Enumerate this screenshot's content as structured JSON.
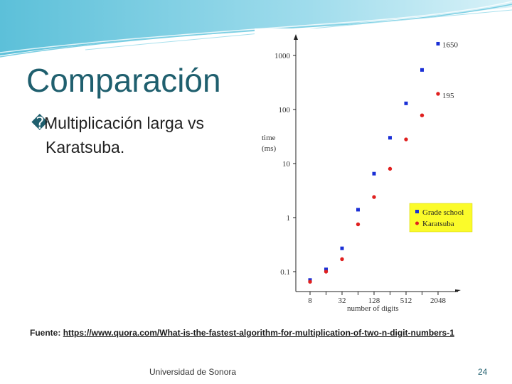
{
  "slide": {
    "title": "Comparación",
    "bullet_glyph": "�",
    "bullet_line1": "Multiplicación larga vs",
    "bullet_line2": "Karatsuba.",
    "source_label": "Fuente:",
    "source_link": "https://www.quora.com/What-is-the-fastest-algorithm-for-multiplication-of-two-n-digit-numbers-1",
    "footer": "Universidad de Sonora",
    "page_number": "24"
  },
  "chart_data": {
    "type": "scatter",
    "ylabel_line1": "time",
    "ylabel_line2": "(ms)",
    "xlabel": "number of digits",
    "y_scale": "log",
    "ylim": [
      0.05,
      2000
    ],
    "y_ticks": [
      {
        "value": 0.1,
        "label": "0.1"
      },
      {
        "value": 1,
        "label": "1"
      },
      {
        "value": 10,
        "label": "10"
      },
      {
        "value": 100,
        "label": "100"
      },
      {
        "value": 1000,
        "label": "1000"
      }
    ],
    "x_scale": "log2",
    "xlim": [
      8,
      2048
    ],
    "x_ticks": [
      {
        "value": 8,
        "label": "8"
      },
      {
        "value": 32,
        "label": "32"
      },
      {
        "value": 128,
        "label": "128"
      },
      {
        "value": 512,
        "label": "512"
      },
      {
        "value": 2048,
        "label": "2048"
      }
    ],
    "legend_position": "right",
    "series": [
      {
        "name": "Grade school",
        "color": "#1a2fd6",
        "points": [
          [
            8,
            0.07
          ],
          [
            16,
            0.11
          ],
          [
            32,
            0.27
          ],
          [
            64,
            1.4
          ],
          [
            128,
            6.5
          ],
          [
            256,
            30
          ],
          [
            512,
            130
          ],
          [
            1024,
            540
          ],
          [
            2048,
            1650
          ]
        ],
        "end_label": "1650"
      },
      {
        "name": "Karatsuba",
        "color": "#e0201f",
        "points": [
          [
            8,
            0.065
          ],
          [
            16,
            0.1
          ],
          [
            32,
            0.17
          ],
          [
            64,
            0.75
          ],
          [
            128,
            2.4
          ],
          [
            256,
            8
          ],
          [
            512,
            28
          ],
          [
            1024,
            78
          ],
          [
            2048,
            195
          ]
        ],
        "end_label": "195"
      }
    ]
  },
  "colors": {
    "title": "#1f5f6e",
    "legend_bg": "#fbfb2a",
    "header_wave": "#5fc4dc"
  }
}
